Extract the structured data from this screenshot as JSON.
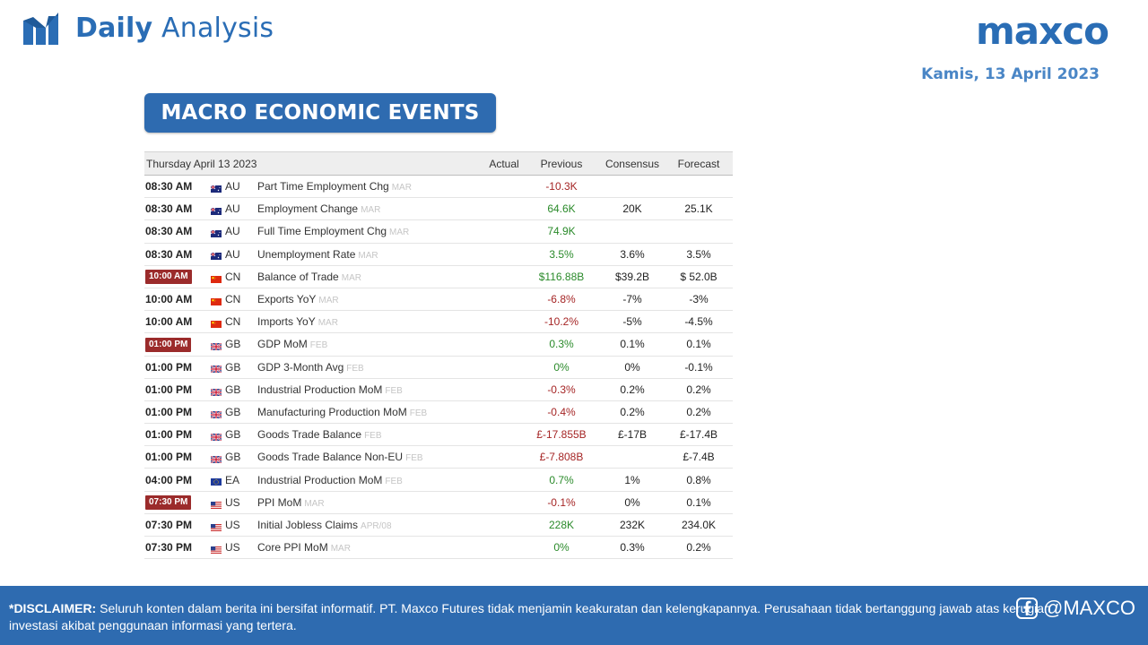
{
  "header": {
    "brand_bold": "Daily",
    "brand_light": "Analysis",
    "logo": "maxco",
    "date": "Kamis, 13 April 2023"
  },
  "section_title": "MACRO ECONOMIC EVENTS",
  "table": {
    "columns": [
      "Thursday April 13 2023",
      "Actual",
      "Previous",
      "Consensus",
      "Forecast"
    ],
    "rows": [
      {
        "time": "08:30 AM",
        "highlight": false,
        "country": "AU",
        "event": "Part Time Employment Chg",
        "period": "MAR",
        "actual": "",
        "previous": "-10.3K",
        "previous_trend": "down",
        "consensus": "",
        "forecast": ""
      },
      {
        "time": "08:30 AM",
        "highlight": false,
        "country": "AU",
        "event": "Employment Change",
        "period": "MAR",
        "actual": "",
        "previous": "64.6K",
        "previous_trend": "up",
        "consensus": "20K",
        "forecast": "25.1K"
      },
      {
        "time": "08:30 AM",
        "highlight": false,
        "country": "AU",
        "event": "Full Time Employment Chg",
        "period": "MAR",
        "actual": "",
        "previous": "74.9K",
        "previous_trend": "up",
        "consensus": "",
        "forecast": ""
      },
      {
        "time": "08:30 AM",
        "highlight": false,
        "country": "AU",
        "event": "Unemployment Rate",
        "period": "MAR",
        "actual": "",
        "previous": "3.5%",
        "previous_trend": "up",
        "consensus": "3.6%",
        "forecast": "3.5%"
      },
      {
        "time": "10:00 AM",
        "highlight": true,
        "country": "CN",
        "event": "Balance of Trade",
        "period": "MAR",
        "actual": "",
        "previous": "$116.88B",
        "previous_trend": "up",
        "consensus": "$39.2B",
        "forecast": "$ 52.0B"
      },
      {
        "time": "10:00 AM",
        "highlight": false,
        "country": "CN",
        "event": "Exports YoY",
        "period": "MAR",
        "actual": "",
        "previous": "-6.8%",
        "previous_trend": "down",
        "consensus": "-7%",
        "forecast": "-3%"
      },
      {
        "time": "10:00 AM",
        "highlight": false,
        "country": "CN",
        "event": "Imports YoY",
        "period": "MAR",
        "actual": "",
        "previous": "-10.2%",
        "previous_trend": "down",
        "consensus": "-5%",
        "forecast": "-4.5%"
      },
      {
        "time": "01:00 PM",
        "highlight": true,
        "country": "GB",
        "event": "GDP MoM",
        "period": "FEB",
        "actual": "",
        "previous": "0.3%",
        "previous_trend": "up",
        "consensus": "0.1%",
        "forecast": "0.1%"
      },
      {
        "time": "01:00 PM",
        "highlight": false,
        "country": "GB",
        "event": "GDP 3-Month Avg",
        "period": "FEB",
        "actual": "",
        "previous": "0%",
        "previous_trend": "up",
        "consensus": "0%",
        "forecast": "-0.1%"
      },
      {
        "time": "01:00 PM",
        "highlight": false,
        "country": "GB",
        "event": "Industrial Production MoM",
        "period": "FEB",
        "actual": "",
        "previous": "-0.3%",
        "previous_trend": "down",
        "consensus": "0.2%",
        "forecast": "0.2%"
      },
      {
        "time": "01:00 PM",
        "highlight": false,
        "country": "GB",
        "event": "Manufacturing Production MoM",
        "period": "FEB",
        "actual": "",
        "previous": "-0.4%",
        "previous_trend": "down",
        "consensus": "0.2%",
        "forecast": "0.2%"
      },
      {
        "time": "01:00 PM",
        "highlight": false,
        "country": "GB",
        "event": "Goods Trade Balance",
        "period": "FEB",
        "actual": "",
        "previous": "£-17.855B",
        "previous_trend": "down",
        "consensus": "£-17B",
        "forecast": "£-17.4B"
      },
      {
        "time": "01:00 PM",
        "highlight": false,
        "country": "GB",
        "event": "Goods Trade Balance Non-EU",
        "period": "FEB",
        "actual": "",
        "previous": "£-7.808B",
        "previous_trend": "down",
        "consensus": "",
        "forecast": "£-7.4B"
      },
      {
        "time": "04:00 PM",
        "highlight": false,
        "country": "EA",
        "event": "Industrial Production MoM",
        "period": "FEB",
        "actual": "",
        "previous": "0.7%",
        "previous_trend": "up",
        "consensus": "1%",
        "forecast": "0.8%"
      },
      {
        "time": "07:30 PM",
        "highlight": true,
        "country": "US",
        "event": "PPI MoM",
        "period": "MAR",
        "actual": "",
        "previous": "-0.1%",
        "previous_trend": "down",
        "consensus": "0%",
        "forecast": "0.1%"
      },
      {
        "time": "07:30 PM",
        "highlight": false,
        "country": "US",
        "event": "Initial Jobless Claims",
        "period": "APR/08",
        "actual": "",
        "previous": "228K",
        "previous_trend": "up",
        "consensus": "232K",
        "forecast": "234.0K"
      },
      {
        "time": "07:30 PM",
        "highlight": false,
        "country": "US",
        "event": "Core PPI MoM",
        "period": "MAR",
        "actual": "",
        "previous": "0%",
        "previous_trend": "up",
        "consensus": "0.3%",
        "forecast": "0.2%"
      }
    ]
  },
  "footer": {
    "disclaimer_label": "*DISCLAIMER:",
    "disclaimer_text": " Seluruh konten dalam berita ini bersifat informatif. PT. Maxco Futures tidak menjamin keakuratan dan kelengkapannya. Perusahaan tidak bertanggung jawab atas kerugian investasi akibat penggunaan informasi yang tertera.",
    "handle": "@MAXCO",
    "handle_icon": "facebook-icon"
  },
  "colors": {
    "brand_blue": "#2a6db5",
    "banner_blue": "#2e6bb0",
    "highlight_red": "#9b2b2b",
    "up_green": "#2a8a2a",
    "down_red": "#a52525"
  }
}
